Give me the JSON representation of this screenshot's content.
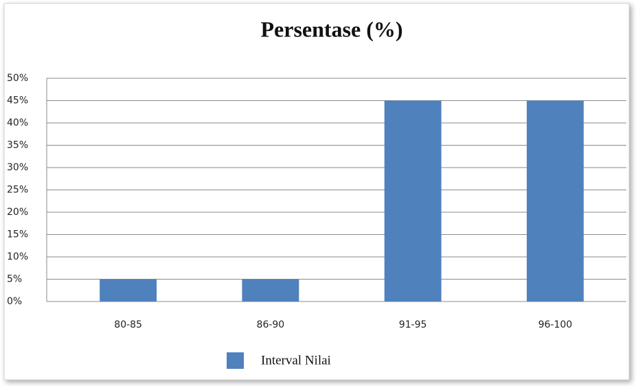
{
  "chart_data": {
    "type": "bar",
    "title": "Persentase (%)",
    "categories": [
      "80-85",
      "86-90",
      "91-95",
      "96-100"
    ],
    "series": [
      {
        "name": "Interval Nilai",
        "color": "#4f81bd",
        "values": [
          5,
          5,
          45,
          45
        ]
      }
    ],
    "ylim": [
      0,
      50
    ],
    "yticks": [
      {
        "value": 0,
        "label": "0%"
      },
      {
        "value": 5,
        "label": "5%"
      },
      {
        "value": 10,
        "label": "10%"
      },
      {
        "value": 15,
        "label": "15%"
      },
      {
        "value": 20,
        "label": "20%"
      },
      {
        "value": 25,
        "label": "25%"
      },
      {
        "value": 30,
        "label": "30%"
      },
      {
        "value": 35,
        "label": "35%"
      },
      {
        "value": 40,
        "label": "40%"
      },
      {
        "value": 45,
        "label": "45%"
      },
      {
        "value": 50,
        "label": "50%"
      }
    ],
    "grid": true,
    "legend": "bottom"
  }
}
